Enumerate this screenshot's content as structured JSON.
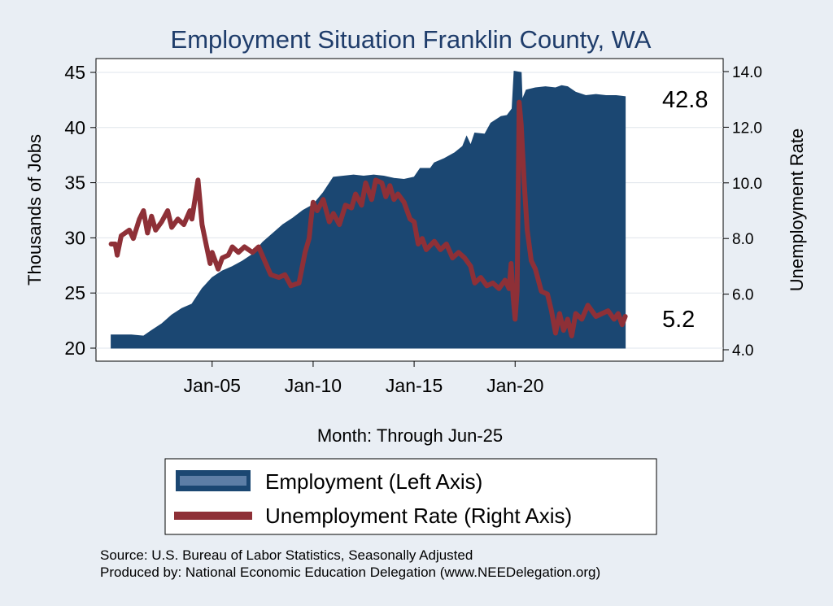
{
  "colors": {
    "background": "#e9eef4",
    "plot_background": "#ffffff",
    "employment": "#1b4772",
    "unemployment": "#8e3037",
    "title": "#1f3d6b",
    "grid": "#dfe5ec"
  },
  "chart_data": {
    "type": "area",
    "title": "Employment Situation Franklin  County, WA",
    "xlabel": "Month: Through Jun-25",
    "ylabel_left": "Thousands of Jobs",
    "ylabel_right": "Unemployment Rate",
    "x_range": [
      "Jan-00",
      "Jun-25"
    ],
    "x_ticks": [
      {
        "x": 2005.0,
        "label": "Jan-05"
      },
      {
        "x": 2010.0,
        "label": "Jan-10"
      },
      {
        "x": 2015.0,
        "label": "Jan-15"
      },
      {
        "x": 2020.0,
        "label": "Jan-20"
      }
    ],
    "ylim_left": [
      20,
      45
    ],
    "y_ticks_left": [
      "20",
      "25",
      "30",
      "35",
      "40",
      "45"
    ],
    "ylim_right": [
      4.0,
      14.0
    ],
    "y_ticks_right": [
      "4.0",
      "6.0",
      "8.0",
      "10.0",
      "12.0",
      "14.0"
    ],
    "grid": true,
    "legend_position": "bottom",
    "legend": [
      "Employment (Left Axis)",
      "Unemployment Rate (Right Axis)"
    ],
    "end_labels": {
      "employment": "42.8",
      "unemployment": "5.2"
    },
    "series": [
      {
        "name": "Employment (Left Axis)",
        "axis": "left",
        "render": "area",
        "points": [
          [
            2000.0,
            21.2
          ],
          [
            2001.0,
            21.2
          ],
          [
            2001.6,
            21.1
          ],
          [
            2002.0,
            21.6
          ],
          [
            2002.5,
            22.2
          ],
          [
            2003.0,
            23.0
          ],
          [
            2003.5,
            23.6
          ],
          [
            2004.0,
            24.0
          ],
          [
            2004.5,
            25.4
          ],
          [
            2005.0,
            26.4
          ],
          [
            2005.5,
            27.0
          ],
          [
            2006.0,
            27.4
          ],
          [
            2006.5,
            27.9
          ],
          [
            2007.0,
            28.5
          ],
          [
            2007.5,
            29.6
          ],
          [
            2008.0,
            30.4
          ],
          [
            2008.5,
            31.2
          ],
          [
            2009.0,
            31.8
          ],
          [
            2009.5,
            32.5
          ],
          [
            2010.0,
            33.0
          ],
          [
            2010.5,
            34.1
          ],
          [
            2011.0,
            35.5
          ],
          [
            2011.5,
            35.6
          ],
          [
            2012.0,
            35.7
          ],
          [
            2012.5,
            35.6
          ],
          [
            2013.0,
            35.7
          ],
          [
            2013.5,
            35.6
          ],
          [
            2014.0,
            35.4
          ],
          [
            2014.5,
            35.3
          ],
          [
            2015.0,
            35.5
          ],
          [
            2015.3,
            36.3
          ],
          [
            2015.8,
            36.3
          ],
          [
            2016.0,
            36.8
          ],
          [
            2016.5,
            37.2
          ],
          [
            2017.0,
            37.7
          ],
          [
            2017.4,
            38.3
          ],
          [
            2017.6,
            39.2
          ],
          [
            2017.8,
            38.4
          ],
          [
            2018.0,
            39.5
          ],
          [
            2018.5,
            39.4
          ],
          [
            2018.8,
            40.4
          ],
          [
            2019.3,
            41.0
          ],
          [
            2019.6,
            41.1
          ],
          [
            2019.85,
            41.7
          ],
          [
            2019.95,
            45.1
          ],
          [
            2020.3,
            45.0
          ],
          [
            2020.35,
            42.5
          ],
          [
            2020.55,
            43.4
          ],
          [
            2021.0,
            43.6
          ],
          [
            2021.5,
            43.7
          ],
          [
            2022.0,
            43.6
          ],
          [
            2022.3,
            43.8
          ],
          [
            2022.6,
            43.7
          ],
          [
            2023.0,
            43.2
          ],
          [
            2023.5,
            42.9
          ],
          [
            2024.0,
            43.0
          ],
          [
            2024.5,
            42.9
          ],
          [
            2025.0,
            42.9
          ],
          [
            2025.45,
            42.8
          ]
        ]
      },
      {
        "name": "Unemployment Rate (Right Axis)",
        "axis": "right",
        "render": "line",
        "points": [
          [
            2000.0,
            7.8
          ],
          [
            2000.2,
            7.8
          ],
          [
            2000.3,
            7.4
          ],
          [
            2000.5,
            8.1
          ],
          [
            2000.9,
            8.3
          ],
          [
            2001.1,
            8.0
          ],
          [
            2001.4,
            8.7
          ],
          [
            2001.6,
            9.0
          ],
          [
            2001.8,
            8.2
          ],
          [
            2002.0,
            8.8
          ],
          [
            2002.2,
            8.3
          ],
          [
            2002.5,
            8.6
          ],
          [
            2002.8,
            9.0
          ],
          [
            2003.0,
            8.4
          ],
          [
            2003.3,
            8.7
          ],
          [
            2003.6,
            8.5
          ],
          [
            2003.9,
            9.0
          ],
          [
            2004.0,
            8.7
          ],
          [
            2004.3,
            10.1
          ],
          [
            2004.5,
            8.5
          ],
          [
            2004.7,
            7.8
          ],
          [
            2004.9,
            7.1
          ],
          [
            2005.0,
            7.5
          ],
          [
            2005.3,
            6.9
          ],
          [
            2005.5,
            7.3
          ],
          [
            2005.8,
            7.4
          ],
          [
            2006.0,
            7.7
          ],
          [
            2006.3,
            7.5
          ],
          [
            2006.6,
            7.7
          ],
          [
            2007.0,
            7.5
          ],
          [
            2007.3,
            7.7
          ],
          [
            2007.6,
            7.2
          ],
          [
            2007.9,
            6.7
          ],
          [
            2008.3,
            6.6
          ],
          [
            2008.6,
            6.7
          ],
          [
            2008.9,
            6.3
          ],
          [
            2009.3,
            6.4
          ],
          [
            2009.6,
            7.5
          ],
          [
            2009.8,
            8.0
          ],
          [
            2009.9,
            8.7
          ],
          [
            2010.0,
            9.3
          ],
          [
            2010.2,
            9.0
          ],
          [
            2010.5,
            9.4
          ],
          [
            2010.8,
            8.6
          ],
          [
            2011.0,
            8.9
          ],
          [
            2011.3,
            8.5
          ],
          [
            2011.6,
            9.2
          ],
          [
            2011.9,
            9.1
          ],
          [
            2012.1,
            9.6
          ],
          [
            2012.4,
            9.2
          ],
          [
            2012.6,
            10.0
          ],
          [
            2012.9,
            9.4
          ],
          [
            2013.1,
            10.1
          ],
          [
            2013.4,
            10.0
          ],
          [
            2013.6,
            9.5
          ],
          [
            2013.8,
            9.9
          ],
          [
            2014.0,
            9.4
          ],
          [
            2014.2,
            9.6
          ],
          [
            2014.5,
            9.3
          ],
          [
            2014.8,
            8.7
          ],
          [
            2015.0,
            8.6
          ],
          [
            2015.2,
            7.8
          ],
          [
            2015.4,
            8.0
          ],
          [
            2015.6,
            7.6
          ],
          [
            2016.0,
            7.9
          ],
          [
            2016.3,
            7.6
          ],
          [
            2016.6,
            7.8
          ],
          [
            2016.9,
            7.3
          ],
          [
            2017.2,
            7.5
          ],
          [
            2017.5,
            7.3
          ],
          [
            2017.8,
            7.0
          ],
          [
            2018.0,
            6.4
          ],
          [
            2018.3,
            6.6
          ],
          [
            2018.6,
            6.3
          ],
          [
            2018.9,
            6.4
          ],
          [
            2019.2,
            6.2
          ],
          [
            2019.5,
            6.5
          ],
          [
            2019.7,
            6.2
          ],
          [
            2019.8,
            7.1
          ],
          [
            2019.9,
            5.9
          ],
          [
            2020.0,
            5.1
          ],
          [
            2020.1,
            6.1
          ],
          [
            2020.2,
            12.9
          ],
          [
            2020.3,
            12.1
          ],
          [
            2020.45,
            10.0
          ],
          [
            2020.6,
            8.3
          ],
          [
            2020.8,
            7.2
          ],
          [
            2021.0,
            6.9
          ],
          [
            2021.3,
            6.1
          ],
          [
            2021.6,
            6.0
          ],
          [
            2021.8,
            5.4
          ],
          [
            2022.0,
            4.6
          ],
          [
            2022.2,
            5.3
          ],
          [
            2022.4,
            4.7
          ],
          [
            2022.6,
            5.1
          ],
          [
            2022.8,
            4.5
          ],
          [
            2023.0,
            5.3
          ],
          [
            2023.3,
            5.1
          ],
          [
            2023.6,
            5.6
          ],
          [
            2023.8,
            5.4
          ],
          [
            2024.0,
            5.2
          ],
          [
            2024.3,
            5.3
          ],
          [
            2024.6,
            5.4
          ],
          [
            2024.9,
            5.1
          ],
          [
            2025.1,
            5.3
          ],
          [
            2025.3,
            4.9
          ],
          [
            2025.45,
            5.2
          ]
        ]
      }
    ]
  },
  "source": {
    "line1": "Source: U.S. Bureau of Labor Statistics, Seasonally Adjusted",
    "line2": "Produced by: National Economic Education Delegation (www.NEEDelegation.org)"
  }
}
